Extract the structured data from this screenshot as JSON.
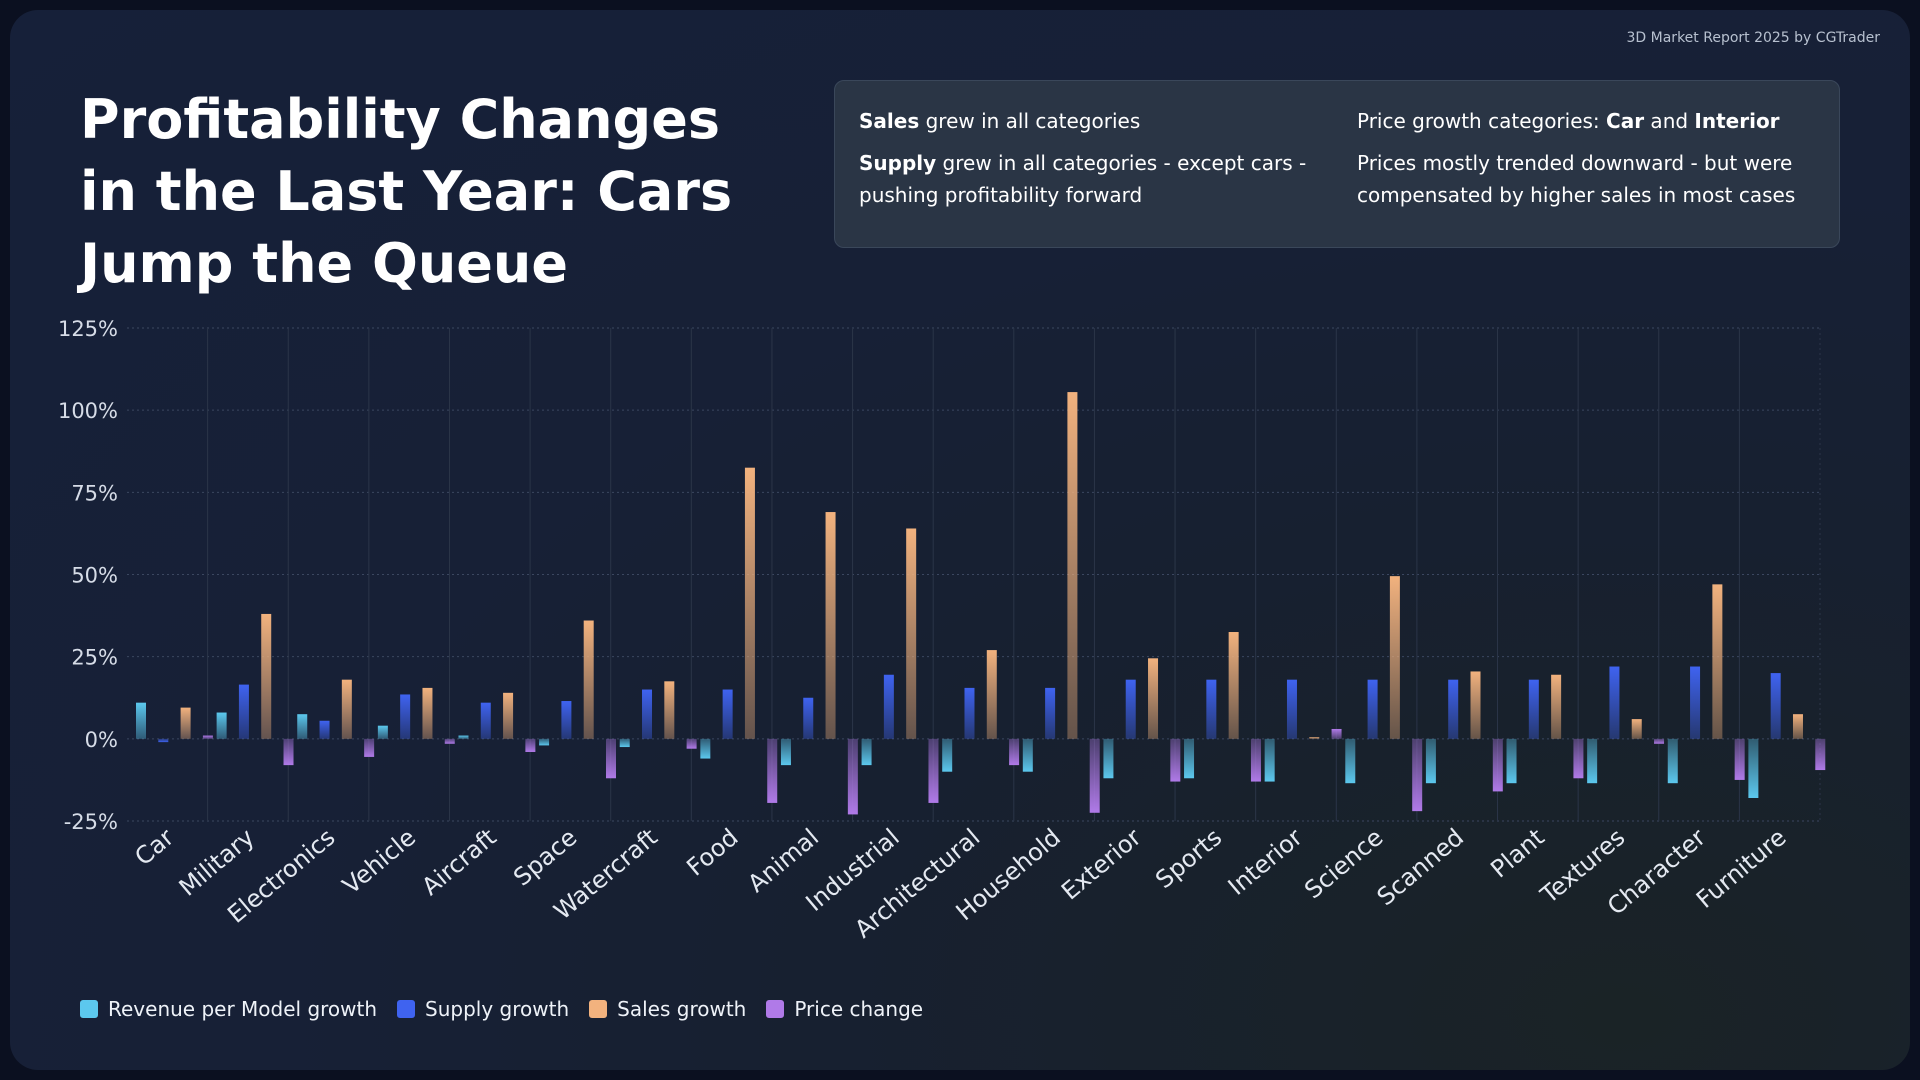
{
  "header": {
    "source": "3D Market Report 2025 by CGTrader",
    "title": "Profitability Changes in the Last Year: Cars Jump the Queue"
  },
  "insights": [
    {
      "bold": "Sales",
      "rest": " grew in all categories"
    },
    {
      "pre": "Price growth categories: ",
      "bold1": "Car",
      "mid": " and ",
      "bold2": "Interior"
    },
    {
      "bold": "Supply",
      "rest": " grew in all categories - except cars - pushing profitability forward"
    },
    {
      "text": "Prices mostly trended downward - but were compensated by higher sales in most cases"
    }
  ],
  "chart_data": {
    "type": "bar",
    "title": "Profitability Changes in the Last Year: Cars Jump the Queue",
    "xlabel": "",
    "ylabel": "",
    "ylim": [
      -25,
      125
    ],
    "yticks": [
      -25,
      0,
      25,
      50,
      75,
      100,
      125
    ],
    "ytick_labels": [
      "-25%",
      "0%",
      "25%",
      "50%",
      "75%",
      "100%",
      "125%"
    ],
    "grid": true,
    "legend_position": "bottom-left",
    "categories": [
      "Car",
      "Military",
      "Electronics",
      "Vehicle",
      "Aircraft",
      "Space",
      "Watercraft",
      "Food",
      "Animal",
      "Industrial",
      "Architectural",
      "Household",
      "Exterior",
      "Sports",
      "Interior",
      "Science",
      "Scanned",
      "Plant",
      "Textures",
      "Character",
      "Furniture"
    ],
    "series": [
      {
        "name": "Revenue per Model growth",
        "color": "#5cc8ee",
        "values": [
          11,
          8,
          7.5,
          4,
          1,
          -2,
          -2.5,
          -6,
          -8,
          -8,
          -10,
          -10,
          -12,
          -12,
          -13,
          -13.5,
          -13.5,
          -13.5,
          -13.5,
          -13.5,
          -18
        ]
      },
      {
        "name": "Supply growth",
        "color": "#3f63f0",
        "values": [
          -1,
          16.5,
          5.5,
          13.5,
          11,
          11.5,
          15,
          15,
          12.5,
          19.5,
          15.5,
          15.5,
          18,
          18,
          18,
          18,
          18,
          18,
          22,
          22,
          20
        ]
      },
      {
        "name": "Sales growth",
        "color": "#f2b27e",
        "values": [
          9.5,
          38,
          18,
          15.5,
          14,
          36,
          17.5,
          82.5,
          69,
          64,
          27,
          105.5,
          24.5,
          32.5,
          0.5,
          49.5,
          20.5,
          19.5,
          6,
          47,
          7.5
        ]
      },
      {
        "name": "Price change",
        "color": "#b07ae8",
        "values": [
          1,
          -8,
          -5.5,
          -1.5,
          -4,
          -12,
          -3,
          -19.5,
          -23,
          -19.5,
          -8,
          -22.5,
          -13,
          -13,
          3,
          -22,
          -16,
          -12,
          -1.5,
          -12.5,
          -9.5
        ]
      }
    ]
  }
}
